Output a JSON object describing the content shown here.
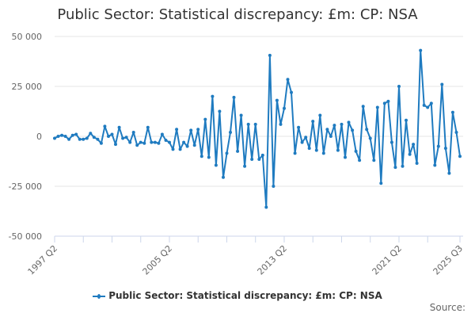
{
  "header": {
    "title": "Public Sector: Statistical discrepancy: £m: CP: NSA"
  },
  "legend": {
    "label": "Public Sector: Statistical discrepancy: £m: CP: NSA"
  },
  "footer": {
    "source_label": "Source:"
  },
  "colors": {
    "series": "#1f7bc0",
    "grid": "#e6e6e6",
    "axis": "#ccd6eb"
  },
  "chart_data": {
    "type": "line",
    "title": "Public Sector: Statistical discrepancy: £m: CP: NSA",
    "xlabel": "",
    "ylabel": "",
    "ylim": [
      -50000,
      50000
    ],
    "yticks": [
      50000,
      25000,
      0,
      -25000,
      -50000
    ],
    "ytick_labels": [
      "50 000",
      "25 000",
      "0",
      "-25 000",
      "-50 000"
    ],
    "xtick_labels": [
      "1997 Q2",
      "2005 Q2",
      "2013 Q2",
      "2021 Q2",
      "2025 Q3"
    ],
    "grid": true,
    "legend_position": "bottom",
    "series": [
      {
        "name": "Public Sector: Statistical discrepancy: £m: CP: NSA",
        "start": "1997 Q2",
        "frequency": "quarterly",
        "values": [
          -1000,
          0,
          500,
          0,
          -1500,
          500,
          1000,
          -1500,
          -1500,
          -1000,
          1500,
          -500,
          -1500,
          -3500,
          5000,
          0,
          1000,
          -4000,
          4500,
          -1000,
          -500,
          -3000,
          2000,
          -4500,
          -3000,
          -3500,
          4500,
          -3000,
          -3000,
          -3500,
          1000,
          -2000,
          -3000,
          -6500,
          3500,
          -6500,
          -3000,
          -5000,
          3000,
          -4500,
          3500,
          -10000,
          8500,
          -10500,
          20000,
          -14500,
          12500,
          -20500,
          -8500,
          2000,
          19500,
          -7500,
          10500,
          -15000,
          6000,
          -11500,
          6000,
          -11500,
          -9500,
          -35500,
          40500,
          -25000,
          18000,
          6000,
          14000,
          28500,
          22000,
          -8500,
          4500,
          -3000,
          -500,
          -6000,
          7500,
          -7000,
          10500,
          -8500,
          3500,
          0,
          5500,
          -7000,
          6000,
          -10500,
          7000,
          3000,
          -7500,
          -12000,
          15000,
          3500,
          -1000,
          -12000,
          14500,
          -23500,
          16500,
          17500,
          -3000,
          -15500,
          25000,
          -15000,
          8000,
          -9000,
          -4000,
          -13500,
          43000,
          15500,
          14500,
          16500,
          -14500,
          -5000,
          26000,
          -6000,
          -18500,
          12000,
          2000,
          -10000
        ]
      }
    ]
  }
}
